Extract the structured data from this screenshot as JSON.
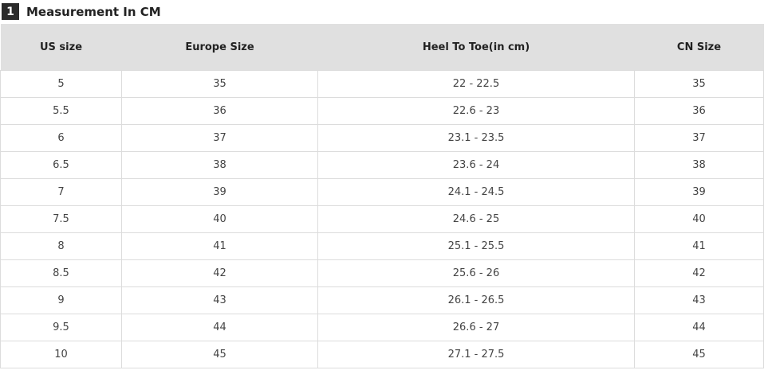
{
  "section": {
    "number": "1",
    "title": "Measurement In CM"
  },
  "table": {
    "headers": [
      "US size",
      "Europe Size",
      "Heel To Toe(in cm)",
      "CN Size"
    ],
    "rows": [
      [
        "5",
        "35",
        "22 - 22.5",
        "35"
      ],
      [
        "5.5",
        "36",
        "22.6 - 23",
        "36"
      ],
      [
        "6",
        "37",
        "23.1 - 23.5",
        "37"
      ],
      [
        "6.5",
        "38",
        "23.6 - 24",
        "38"
      ],
      [
        "7",
        "39",
        "24.1 - 24.5",
        "39"
      ],
      [
        "7.5",
        "40",
        "24.6 - 25",
        "40"
      ],
      [
        "8",
        "41",
        "25.1 - 25.5",
        "41"
      ],
      [
        "8.5",
        "42",
        "25.6 - 26",
        "42"
      ],
      [
        "9",
        "43",
        "26.1 - 26.5",
        "43"
      ],
      [
        "9.5",
        "44",
        "26.6 - 27",
        "44"
      ],
      [
        "10",
        "45",
        "27.1 - 27.5",
        "45"
      ]
    ]
  }
}
